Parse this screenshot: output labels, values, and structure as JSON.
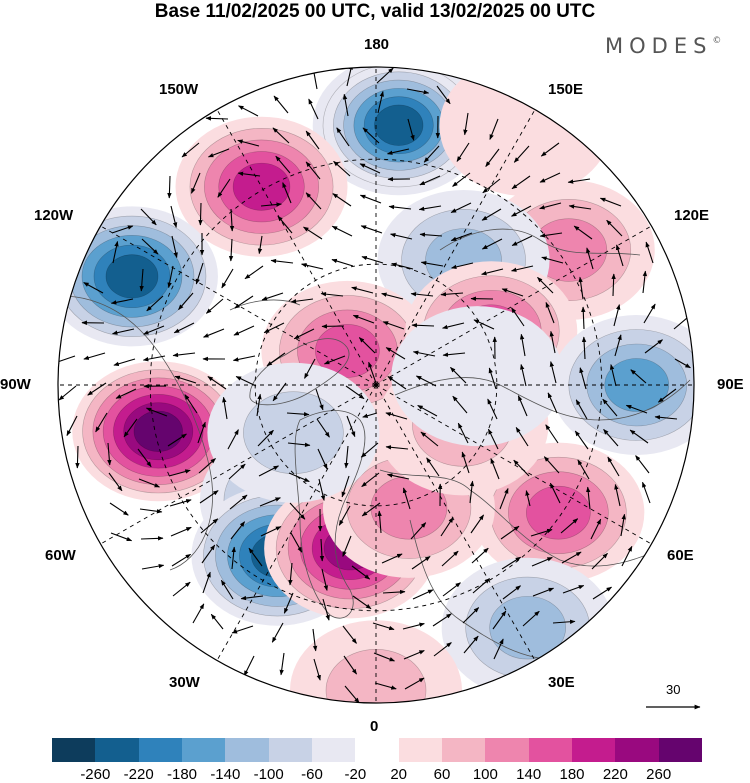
{
  "title": "Base 11/02/2025 00 UTC, valid 13/02/2025 00 UTC",
  "brand": "MODES",
  "brand_mark": "©",
  "map_labels": {
    "top": "180",
    "bottom": "0",
    "left": "90W",
    "right": "90E",
    "nw_upper": "150W",
    "ne_upper": "150E",
    "nw_lower": "120W",
    "ne_lower": "120E",
    "sw_upper": "60W",
    "se_upper": "60E",
    "sw_lower": "30W",
    "se_lower": "30E"
  },
  "wind_scale": {
    "value": "30",
    "icon": "arrow-right-icon"
  },
  "colorbar": {
    "colors": [
      "#0d3c5c",
      "#135f8f",
      "#2f82bb",
      "#5ba0cf",
      "#9fbddd",
      "#c8d2e6",
      "#e8e8f2",
      "#ffffff",
      "#fbdde0",
      "#f4b6c4",
      "#ee85ae",
      "#e3529f",
      "#c41c8e",
      "#99097f",
      "#65046e"
    ],
    "tick_labels": [
      "-260",
      "-220",
      "-180",
      "-140",
      "-100",
      "-60",
      "-20",
      "20",
      "60",
      "100",
      "140",
      "180",
      "220",
      "260"
    ]
  },
  "anomaly_field": [
    {
      "lon": 175,
      "r": 0.82,
      "v": -250
    },
    {
      "lon": 210,
      "r": 0.72,
      "v": 180
    },
    {
      "lon": 125,
      "r": 0.74,
      "v": 110
    },
    {
      "lon": 145,
      "r": 0.48,
      "v": -110
    },
    {
      "lon": 246,
      "r": 0.84,
      "v": -220
    },
    {
      "lon": 282,
      "r": 0.7,
      "v": 270
    },
    {
      "lon": 322,
      "r": 0.46,
      "v": -120
    },
    {
      "lon": 330,
      "r": 0.62,
      "v": -230
    },
    {
      "lon": 351,
      "r": 0.52,
      "v": 220
    },
    {
      "lon": 220,
      "r": 0.14,
      "v": 150
    },
    {
      "lon": 115,
      "r": 0.4,
      "v": 150
    },
    {
      "lon": 90,
      "r": 0.82,
      "v": -150
    },
    {
      "lon": 55,
      "r": 0.7,
      "v": 140
    },
    {
      "lon": 15,
      "r": 0.4,
      "v": 120
    },
    {
      "lon": 65,
      "r": 0.3,
      "v": 60
    },
    {
      "lon": 32,
      "r": 0.9,
      "v": -110
    },
    {
      "lon": 0,
      "r": 0.96,
      "v": 80
    },
    {
      "lon": 95,
      "r": 0.32,
      "v": -40
    },
    {
      "lon": 300,
      "r": 0.3,
      "v": -60
    },
    {
      "lon": 150,
      "r": 0.94,
      "v": 40
    }
  ]
}
